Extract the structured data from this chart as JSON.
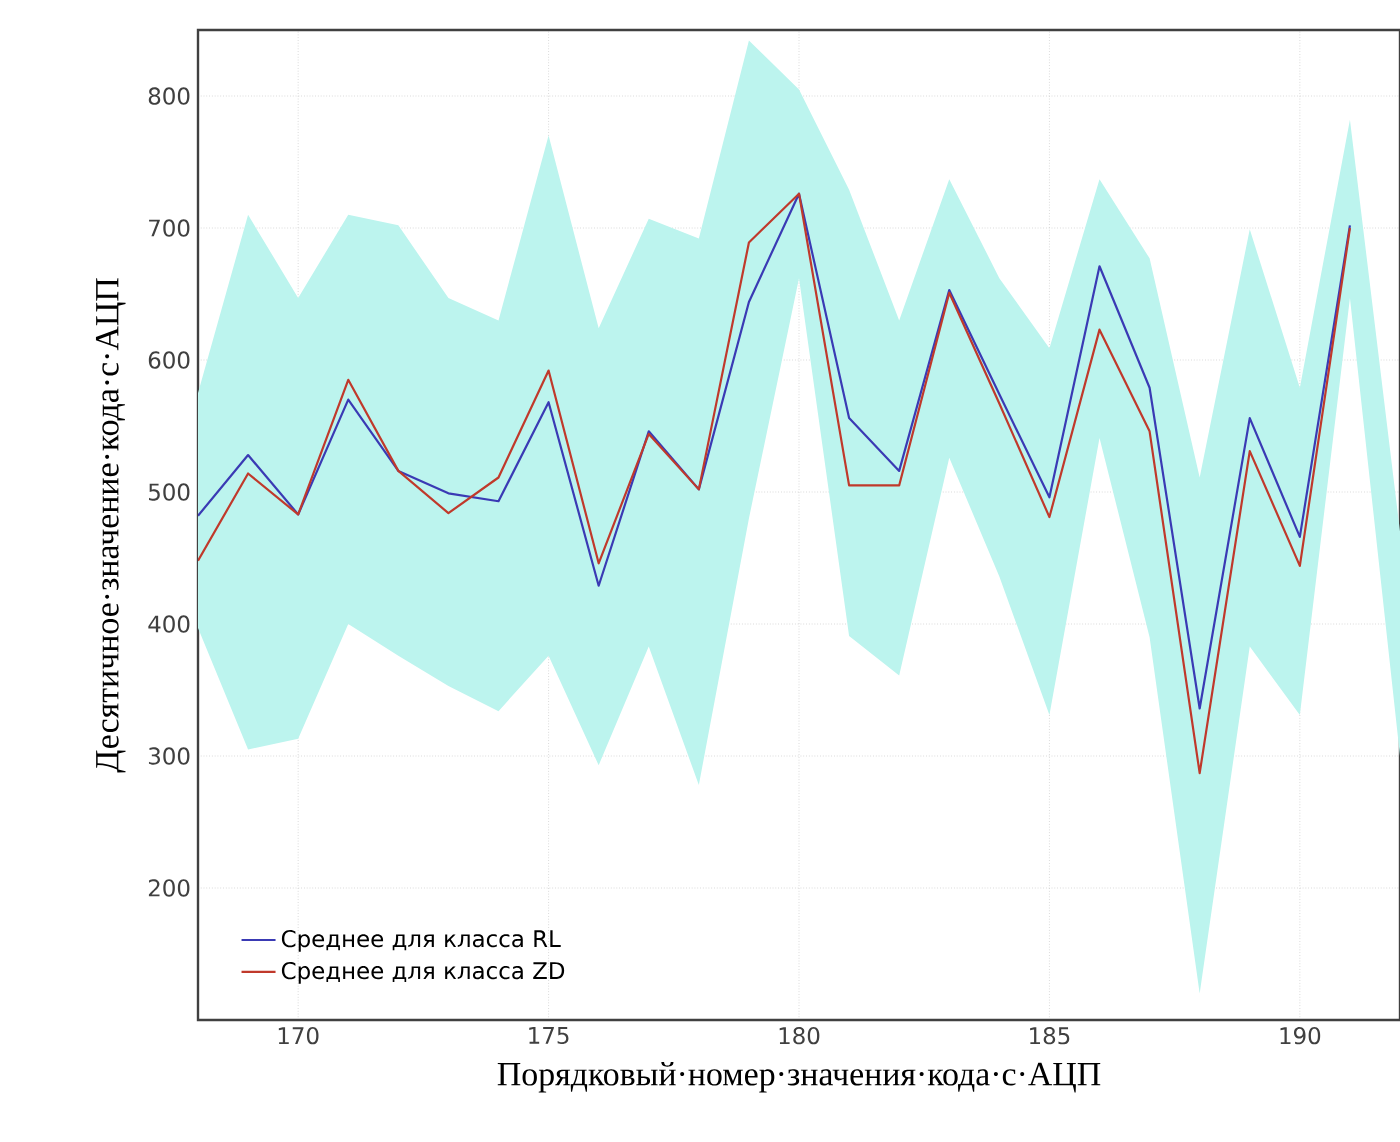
{
  "chart_data": {
    "type": "line",
    "xlabel": "Порядковый·номер·значения·кода·с·АЦП",
    "ylabel": "Десятичное·значение·кода·с·АЦП",
    "x": [
      168,
      169,
      170,
      171,
      172,
      173,
      174,
      175,
      176,
      177,
      178,
      179,
      180,
      181,
      182,
      183,
      184,
      185,
      186,
      187,
      188,
      189,
      190,
      191,
      192
    ],
    "series": [
      {
        "name": "Среднее для класса RL",
        "color": "#3a3ab4",
        "values": [
          482,
          528,
          483,
          570,
          516,
          499,
          493,
          568,
          429,
          546,
          502,
          644,
          726,
          556,
          516,
          653,
          574,
          496,
          671,
          579,
          336,
          556,
          466,
          702,
          null
        ],
        "lower": [
          397,
          305,
          313,
          400,
          376,
          353,
          334,
          376,
          293,
          383,
          278,
          480,
          662,
          391,
          361,
          526,
          436,
          331,
          541,
          390,
          120,
          383,
          331,
          647,
          300
        ],
        "upper": [
          575,
          710,
          647,
          710,
          702,
          647,
          630,
          770,
          624,
          707,
          692,
          842,
          805,
          729,
          630,
          737,
          662,
          609,
          737,
          677,
          511,
          699,
          579,
          782,
          470
        ]
      },
      {
        "name": "Среднее для класса ZD",
        "color": "#c0392b",
        "values": [
          448,
          514,
          483,
          585,
          516,
          484,
          511,
          592,
          446,
          544,
          502,
          689,
          726,
          505,
          505,
          651,
          567,
          481,
          623,
          546,
          287,
          531,
          444,
          700,
          null
        ]
      }
    ],
    "xlim": [
      168,
      192
    ],
    "ylim": [
      100,
      850
    ],
    "xticks": [
      170,
      175,
      180,
      185,
      190
    ],
    "yticks": [
      200,
      300,
      400,
      500,
      600,
      700,
      800
    ],
    "grid": true,
    "legend": "bottom left",
    "marker": "none",
    "line_style": "solid"
  }
}
